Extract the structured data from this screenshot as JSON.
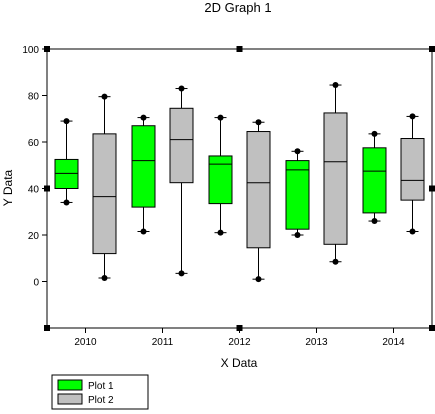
{
  "chart_data": {
    "type": "box",
    "title": "2D Graph 1",
    "xlabel": "X Data",
    "ylabel": "Y Data",
    "ylim": [
      -20,
      100
    ],
    "yticks": [
      0,
      20,
      40,
      60,
      80,
      100
    ],
    "categories": [
      "2010",
      "2011",
      "2012",
      "2013",
      "2014"
    ],
    "legend_position": "bottom-left",
    "grid": false,
    "series": [
      {
        "name": "Plot 1",
        "color": "#00ff00",
        "boxes": [
          {
            "min": 34,
            "q1": 40,
            "median": 46.5,
            "q3": 52.5,
            "max": 69
          },
          {
            "min": 21.5,
            "q1": 32,
            "median": 52,
            "q3": 67,
            "max": 70.5
          },
          {
            "min": 21,
            "q1": 33.5,
            "median": 50.5,
            "q3": 54,
            "max": 70.5
          },
          {
            "min": 20,
            "q1": 22.5,
            "median": 48,
            "q3": 52,
            "max": 56
          },
          {
            "min": 26,
            "q1": 29.5,
            "median": 47.5,
            "q3": 57.5,
            "max": 63.5
          }
        ]
      },
      {
        "name": "Plot 2",
        "color": "#c0c0c0",
        "boxes": [
          {
            "min": 1.5,
            "q1": 12,
            "median": 36.5,
            "q3": 63.5,
            "max": 79.5
          },
          {
            "min": 3.5,
            "q1": 42.5,
            "median": 61,
            "q3": 74.5,
            "max": 83
          },
          {
            "min": 1,
            "q1": 14.5,
            "median": 42.5,
            "q3": 64.5,
            "max": 68.5
          },
          {
            "min": 8.5,
            "q1": 16,
            "median": 51.5,
            "q3": 72.5,
            "max": 84.5
          },
          {
            "min": 21.5,
            "q1": 35,
            "median": 43.5,
            "q3": 61.5,
            "max": 71
          }
        ]
      }
    ]
  }
}
